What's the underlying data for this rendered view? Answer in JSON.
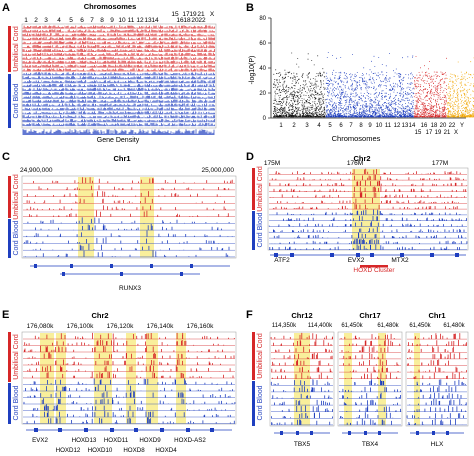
{
  "colors": {
    "umbilical": "#d62728",
    "cord_blood": "#1f3fbf",
    "highlight": "#f7e97a",
    "gene": "#1f3fbf",
    "axis": "#222222",
    "manhattan": [
      "#111111",
      "#1f3fbf",
      "#d62728",
      "#f0a500"
    ]
  },
  "groups": {
    "umbilical_cord": "Umbilical Cord",
    "cord_blood": "Cord Blood"
  },
  "panels": {
    "A": {
      "letter": "A",
      "title": "Chromosomes",
      "chrom_labels": [
        "1",
        "2",
        "3",
        "4",
        "5",
        "6",
        "7",
        "8",
        "9",
        "10",
        "11",
        "12",
        "13",
        "14",
        "15",
        "17",
        "19",
        "21",
        "X",
        "16",
        "18",
        "20",
        "22"
      ],
      "gene_density_label": "Gene Density"
    },
    "B": {
      "letter": "B",
      "ylabel": "-log10(P)",
      "xlabel": "Chromosomes",
      "y_ticks": [
        "0",
        "20",
        "40",
        "60",
        "80"
      ],
      "x_ticks_row1": [
        "1",
        "2",
        "3",
        "4",
        "5",
        "6",
        "7",
        "8",
        "9",
        "10",
        "11",
        "12",
        "13",
        "14",
        "16",
        "18",
        "20",
        "22",
        "Y"
      ],
      "x_ticks_row2": [
        "15",
        "17",
        "19",
        "21",
        "X"
      ]
    },
    "C": {
      "letter": "C",
      "chrom": "Chr1",
      "start": "24,900,000",
      "end": "25,000,000",
      "gene": "RUNX3"
    },
    "D": {
      "letter": "D",
      "chrom": "Chr2",
      "ticks": [
        "175M",
        "176M",
        "177M"
      ],
      "genes": [
        "ATF2",
        "EVX2",
        "MTX2"
      ],
      "cluster": "HOXD Cluster"
    },
    "E": {
      "letter": "E",
      "chrom": "Chr2",
      "ticks": [
        "176,080k",
        "176,100k",
        "176,120k",
        "176,140k",
        "176,160k"
      ],
      "genes_row1": [
        "EVX2",
        "HOXD13",
        "HOXD11",
        "HOXD9",
        "HOXD-AS2"
      ],
      "genes_row2": [
        "HOXD12",
        "HOXD10",
        "HOXD8",
        "HOXD4"
      ]
    },
    "F": {
      "letter": "F",
      "sub": [
        {
          "chrom": "Chr12",
          "ticks": [
            "114,350k",
            "114,400k"
          ],
          "gene": "TBX5"
        },
        {
          "chrom": "Chr17",
          "ticks": [
            "61,450k",
            "61,480k"
          ],
          "gene": "TBX4"
        },
        {
          "chrom": "Chr1",
          "ticks": [
            "61,450k",
            "61,480k"
          ],
          "gene": "HLX"
        }
      ]
    }
  }
}
